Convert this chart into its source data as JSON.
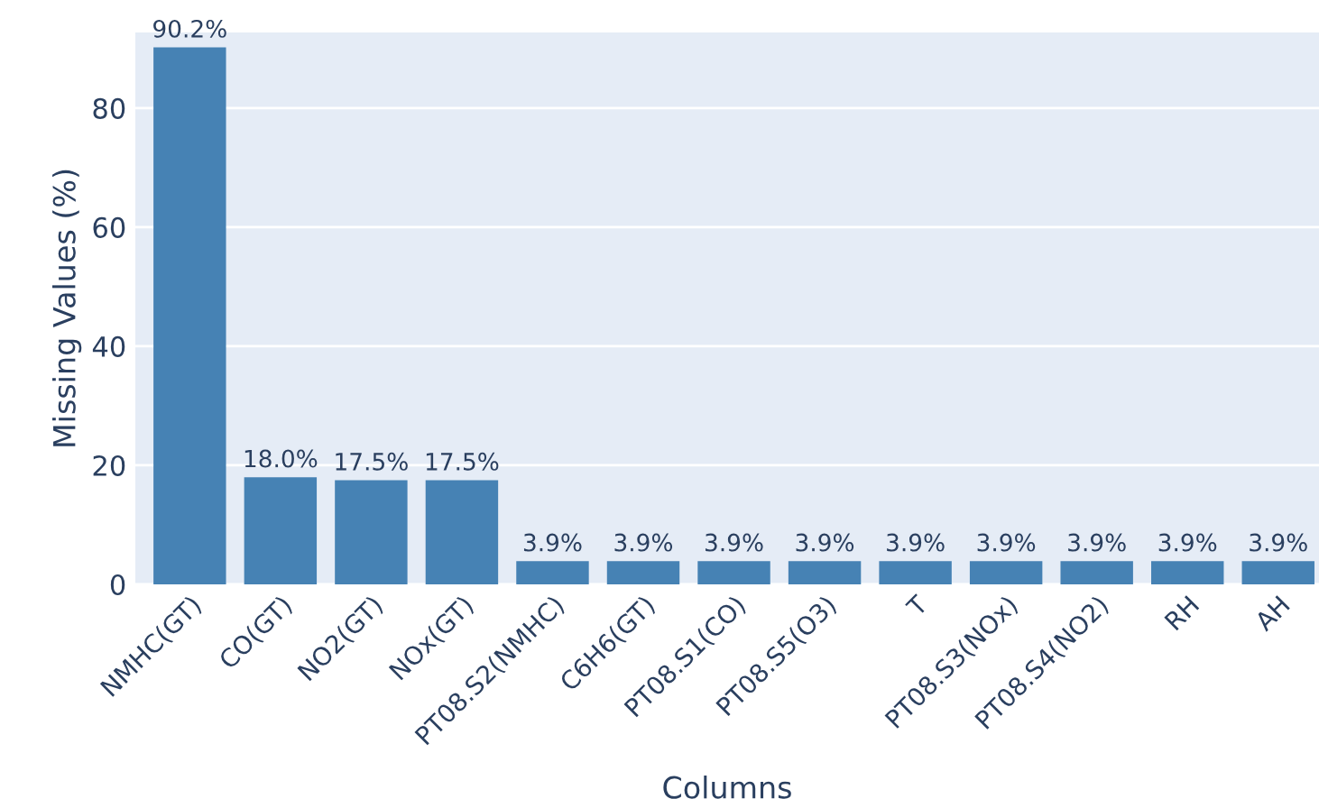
{
  "chart_data": {
    "type": "bar",
    "xlabel": "Columns",
    "ylabel": "Missing Values (%)",
    "categories": [
      "NMHC(GT)",
      "CO(GT)",
      "NO2(GT)",
      "NOx(GT)",
      "PT08.S2(NMHC)",
      "C6H6(GT)",
      "PT08.S1(CO)",
      "PT08.S5(O3)",
      "T",
      "PT08.S3(NOx)",
      "PT08.S4(NO2)",
      "RH",
      "AH"
    ],
    "values": [
      90.2,
      18.0,
      17.5,
      17.5,
      3.9,
      3.9,
      3.9,
      3.9,
      3.9,
      3.9,
      3.9,
      3.9,
      3.9
    ],
    "value_labels": [
      "90.2%",
      "18.0%",
      "17.5%",
      "17.5%",
      "3.9%",
      "3.9%",
      "3.9%",
      "3.9%",
      "3.9%",
      "3.9%",
      "3.9%",
      "3.9%",
      "3.9%"
    ],
    "color": "#4682b4",
    "ylim": [
      0,
      92.7
    ],
    "yticks": [
      0,
      20,
      40,
      60,
      80
    ],
    "grid": "y"
  }
}
